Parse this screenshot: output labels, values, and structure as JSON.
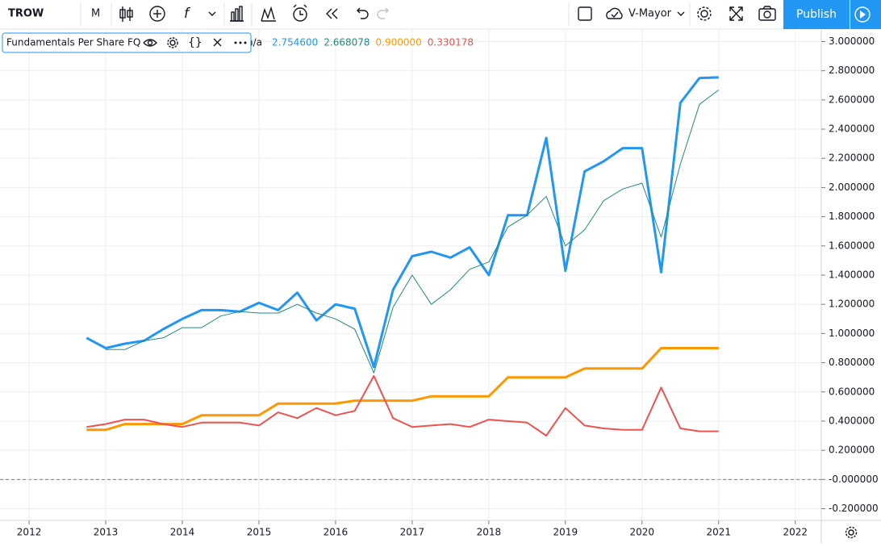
{
  "toolbar": {
    "symbol": "TROW",
    "interval": "M",
    "layout": "V-Mayor",
    "publish": "Publish"
  },
  "indicator": {
    "name": "Fundamentals Per Share FQ",
    "status": "n/a"
  },
  "chart_data": {
    "type": "line",
    "legend_values": [
      "2.754600",
      "2.668078",
      "0.900000",
      "0.330178"
    ],
    "x": [
      2012.75,
      2013.0,
      2013.25,
      2013.5,
      2013.75,
      2014.0,
      2014.25,
      2014.5,
      2014.75,
      2015.0,
      2015.25,
      2015.5,
      2015.75,
      2016.0,
      2016.25,
      2016.5,
      2016.75,
      2017.0,
      2017.25,
      2017.5,
      2017.75,
      2018.0,
      2018.25,
      2018.5,
      2018.75,
      2019.0,
      2019.25,
      2019.5,
      2019.75,
      2020.0,
      2020.25,
      2020.5,
      2020.75,
      2021.0
    ],
    "series": [
      {
        "color": "#2196f3",
        "width": 3,
        "values": [
          0.97,
          0.9,
          0.93,
          0.95,
          1.03,
          1.1,
          1.16,
          1.16,
          1.15,
          1.21,
          1.16,
          1.28,
          1.09,
          1.2,
          1.17,
          0.77,
          1.3,
          1.53,
          1.56,
          1.52,
          1.59,
          1.4,
          1.81,
          1.81,
          2.34,
          1.43,
          2.11,
          2.18,
          2.27,
          2.27,
          1.42,
          2.58,
          2.75,
          2.7546
        ]
      },
      {
        "color": "#22897f",
        "width": 1,
        "values": [
          null,
          0.89,
          0.89,
          0.95,
          0.97,
          1.04,
          1.04,
          1.12,
          1.15,
          1.14,
          1.14,
          1.2,
          1.14,
          1.1,
          1.03,
          0.73,
          1.18,
          1.4,
          1.2,
          1.3,
          1.44,
          1.49,
          1.73,
          1.81,
          1.94,
          1.6,
          1.71,
          1.91,
          1.99,
          2.03,
          1.66,
          2.16,
          2.57,
          2.668078
        ]
      },
      {
        "color": "#ff9800",
        "width": 3,
        "values": [
          0.34,
          0.34,
          0.38,
          0.38,
          0.38,
          0.38,
          0.44,
          0.44,
          0.44,
          0.44,
          0.52,
          0.52,
          0.52,
          0.52,
          0.54,
          0.54,
          0.54,
          0.54,
          0.57,
          0.57,
          0.57,
          0.57,
          0.7,
          0.7,
          0.7,
          0.7,
          0.76,
          0.76,
          0.76,
          0.76,
          0.9,
          0.9,
          0.9,
          0.9
        ]
      },
      {
        "color": "#ef5350",
        "width": 2,
        "values": [
          0.36,
          0.38,
          0.41,
          0.41,
          0.38,
          0.36,
          0.39,
          0.39,
          0.39,
          0.37,
          0.46,
          0.42,
          0.49,
          0.44,
          0.47,
          0.71,
          0.42,
          0.36,
          0.37,
          0.38,
          0.36,
          0.41,
          0.4,
          0.39,
          0.3,
          0.49,
          0.37,
          0.35,
          0.34,
          0.34,
          0.63,
          0.35,
          0.33,
          0.330178
        ]
      }
    ],
    "xlim": [
      2011.62,
      2022.34
    ],
    "xticks": [
      2012,
      2013,
      2014,
      2015,
      2016,
      2017,
      2018,
      2019,
      2020,
      2021,
      2022
    ],
    "ylim": [
      -0.28,
      3.08
    ],
    "yticks": [
      {
        "value": -0.2,
        "label": "-0.200000"
      },
      {
        "value": 0,
        "label": "-0.000000"
      },
      {
        "value": 0.2,
        "label": "0.200000"
      },
      {
        "value": 0.4,
        "label": "0.400000"
      },
      {
        "value": 0.6,
        "label": "0.600000"
      },
      {
        "value": 0.8,
        "label": "0.800000"
      },
      {
        "value": 1.0,
        "label": "1.000000"
      },
      {
        "value": 1.2,
        "label": "1.200000"
      },
      {
        "value": 1.4,
        "label": "1.400000"
      },
      {
        "value": 1.6,
        "label": "1.600000"
      },
      {
        "value": 1.8,
        "label": "1.800000"
      },
      {
        "value": 2.0,
        "label": "2.000000"
      },
      {
        "value": 2.2,
        "label": "2.200000"
      },
      {
        "value": 2.4,
        "label": "2.400000"
      },
      {
        "value": 2.6,
        "label": "2.600000"
      },
      {
        "value": 2.8,
        "label": "2.800000"
      },
      {
        "value": 3.0,
        "label": "3.000000"
      }
    ],
    "grid": true,
    "zero_line": true
  }
}
